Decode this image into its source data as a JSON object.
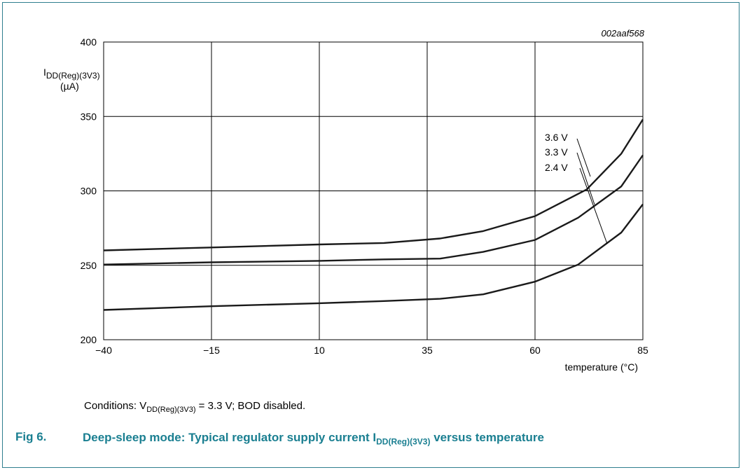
{
  "chart_data": {
    "type": "line",
    "code": "002aaf568",
    "ylabel_main": "I",
    "ylabel_sub": "DD(Reg)(3V3)",
    "ylabel_unit": "(µA)",
    "xlabel": "temperature (°C)",
    "xlim": [
      -40,
      85
    ],
    "ylim": [
      200,
      400
    ],
    "x_ticks": [
      -40,
      -15,
      10,
      35,
      60,
      85
    ],
    "x_tick_labels": [
      "−40",
      "−15",
      "10",
      "35",
      "60",
      "85"
    ],
    "y_ticks": [
      200,
      250,
      300,
      350,
      400
    ],
    "y_tick_labels": [
      "200",
      "250",
      "300",
      "350",
      "400"
    ],
    "grid": true,
    "series": [
      {
        "name": "3.6 V",
        "points": [
          [
            -40,
            260
          ],
          [
            -15,
            262
          ],
          [
            10,
            264
          ],
          [
            25,
            265
          ],
          [
            38,
            268
          ],
          [
            48,
            273
          ],
          [
            60,
            283
          ],
          [
            72,
            301
          ],
          [
            80,
            325
          ],
          [
            85,
            348
          ]
        ]
      },
      {
        "name": "3.3 V",
        "points": [
          [
            -40,
            250.5
          ],
          [
            -15,
            252
          ],
          [
            10,
            253
          ],
          [
            25,
            254
          ],
          [
            38,
            254.5
          ],
          [
            48,
            259
          ],
          [
            60,
            267
          ],
          [
            70,
            282
          ],
          [
            80,
            303
          ],
          [
            85,
            324
          ]
        ]
      },
      {
        "name": "2.4 V",
        "points": [
          [
            -40,
            220
          ],
          [
            -15,
            222.5
          ],
          [
            10,
            224.5
          ],
          [
            25,
            226
          ],
          [
            38,
            227.5
          ],
          [
            48,
            230.5
          ],
          [
            60,
            239
          ],
          [
            70,
            250.5
          ],
          [
            80,
            272
          ],
          [
            85,
            291
          ]
        ]
      }
    ]
  },
  "conditions": {
    "prefix": "Conditions: V",
    "sub": "DD(Reg)(3V3)",
    "suffix": " = 3.3 V; BOD disabled."
  },
  "figure": {
    "number": "Fig 6.",
    "caption_a": "Deep-sleep mode: Typical regulator supply current I",
    "caption_sub": "DD(Reg)(3V3)",
    "caption_b": " versus temperature"
  }
}
